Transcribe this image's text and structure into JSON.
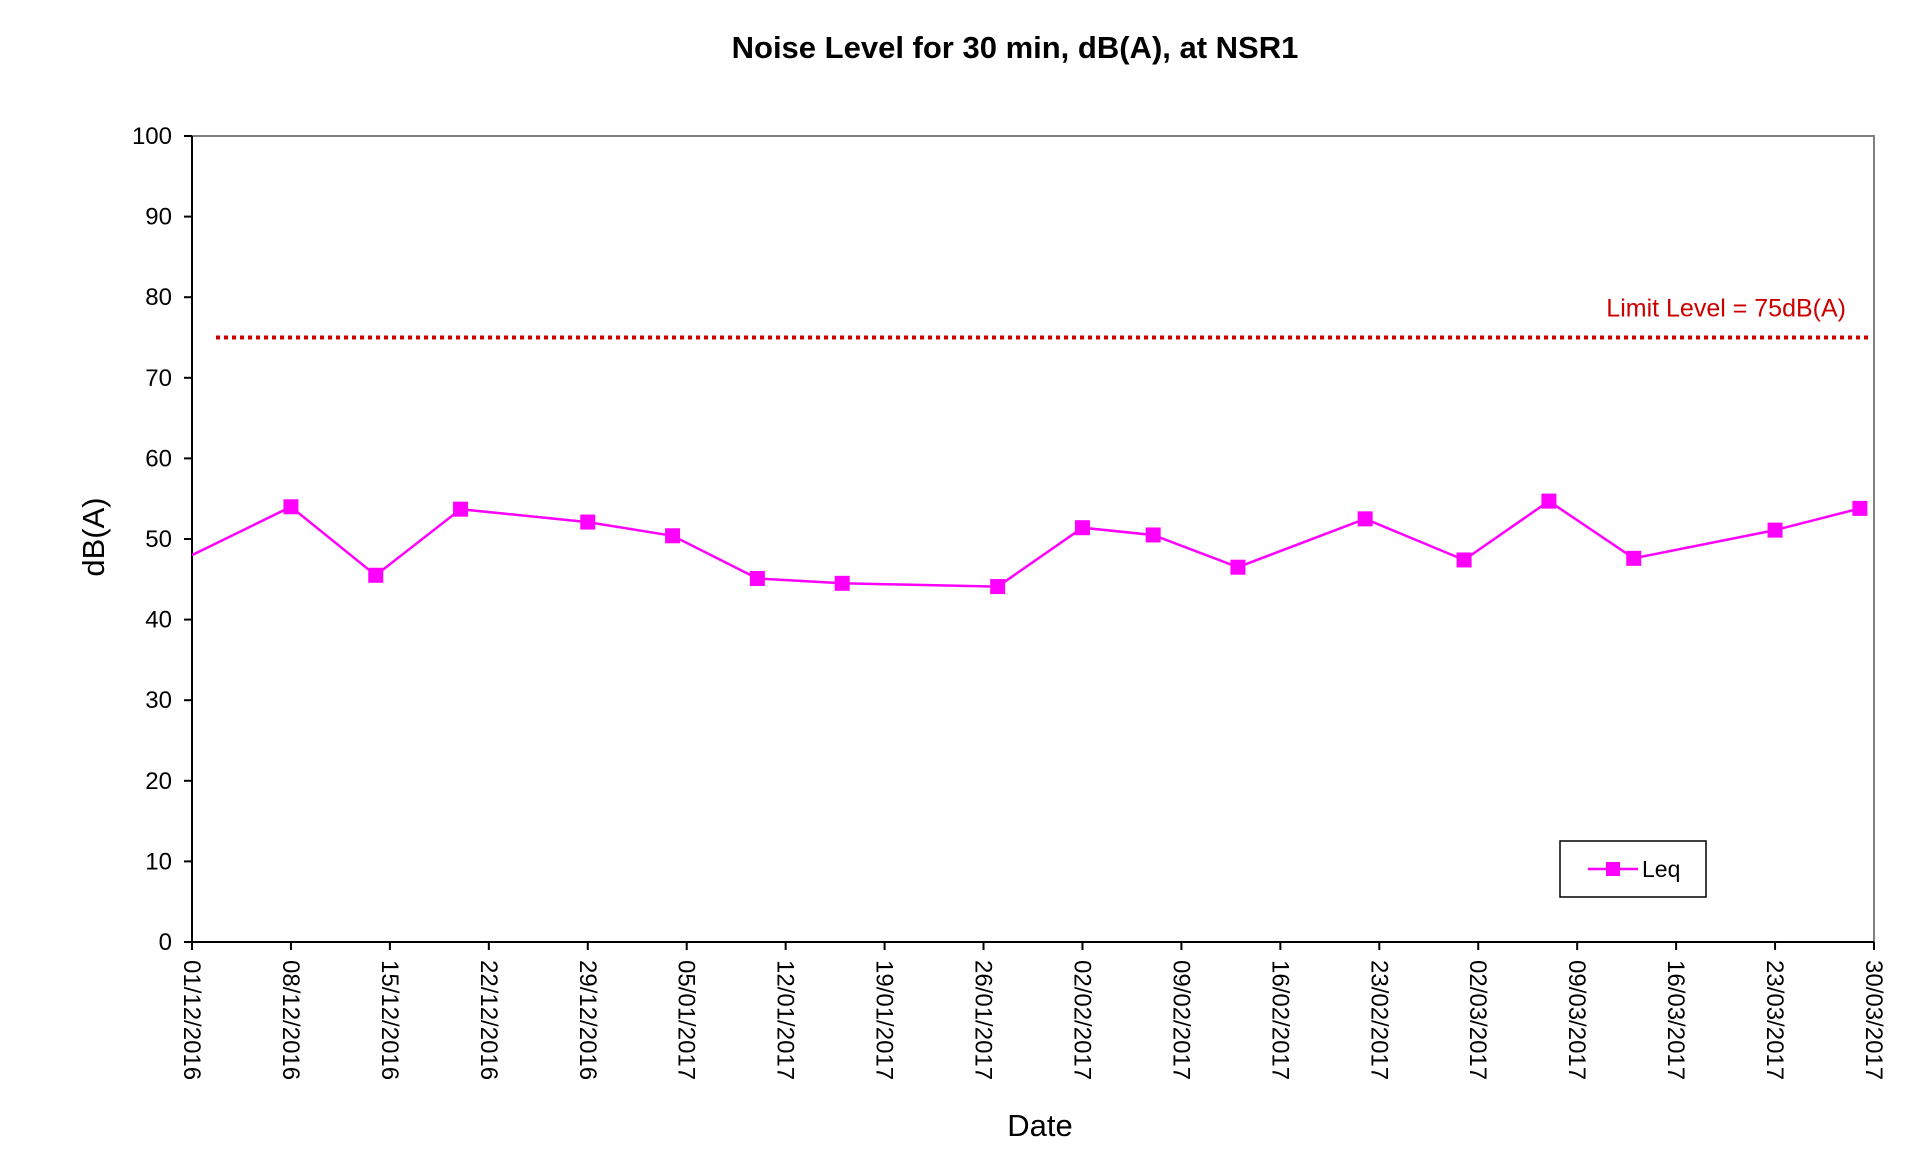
{
  "chart_data": {
    "type": "line",
    "title": "Noise Level for 30 min, dB(A), at NSR1",
    "xlabel": "Date",
    "ylabel": "dB(A)",
    "ylim": [
      0,
      100
    ],
    "yticks": [
      0,
      10,
      20,
      30,
      40,
      50,
      60,
      70,
      80,
      90,
      100
    ],
    "xlim": [
      "2016-12-01",
      "2017-03-30"
    ],
    "xtick_labels": [
      "01/12/2016",
      "08/12/2016",
      "15/12/2016",
      "22/12/2016",
      "29/12/2016",
      "05/01/2017",
      "12/01/2017",
      "19/01/2017",
      "26/01/2017",
      "02/02/2017",
      "09/02/2017",
      "16/02/2017",
      "23/02/2017",
      "02/03/2017",
      "09/03/2017",
      "16/03/2017",
      "23/03/2017",
      "30/03/2017"
    ],
    "grid": false,
    "legend_position": "bottom-right",
    "series": [
      {
        "name": "Leq",
        "color": "#ff00ff",
        "marker": "square",
        "x": [
          "2016-12-01",
          "2016-12-08",
          "2016-12-14",
          "2016-12-20",
          "2016-12-29",
          "2017-01-04",
          "2017-01-10",
          "2017-01-16",
          "2017-01-27",
          "2017-02-02",
          "2017-02-07",
          "2017-02-13",
          "2017-02-22",
          "2017-03-01",
          "2017-03-07",
          "2017-03-13",
          "2017-03-23",
          "2017-03-29"
        ],
        "y": [
          48.0,
          54.0,
          45.5,
          53.7,
          52.1,
          50.4,
          45.1,
          44.5,
          44.1,
          51.4,
          50.5,
          46.5,
          52.5,
          47.4,
          54.7,
          47.6,
          51.1,
          53.8
        ]
      }
    ],
    "reference_lines": [
      {
        "label": "Limit Level = 75dB(A)",
        "y": 75,
        "color": "#cc0000",
        "style": "dotted"
      }
    ]
  }
}
